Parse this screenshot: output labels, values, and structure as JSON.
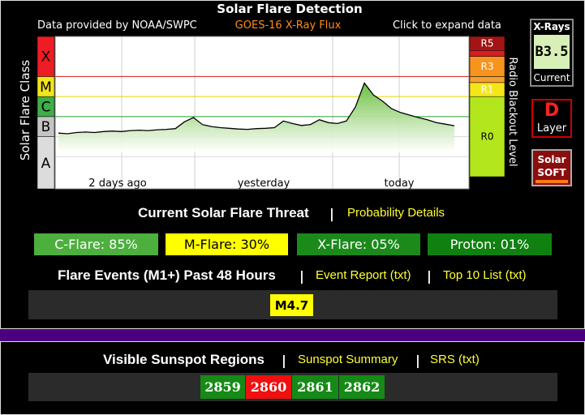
{
  "chart_data": {
    "type": "line",
    "title": "Solar Flare Detection",
    "subtitle": "GOES-16 X-Ray Flux",
    "source_note": "Data provided by NOAA/SWPC",
    "expand_note": "Click to expand data",
    "y_label": "Solar Flare Class",
    "y2_label": "Radio Blackout Level",
    "log_scale": true,
    "ylim": [
      1e-09,
      0.01
    ],
    "yticks": [
      {
        "value": 1e-08,
        "label": "A"
      },
      {
        "value": 1e-07,
        "label": "B"
      },
      {
        "value": 1e-06,
        "label": "C"
      },
      {
        "value": 1e-05,
        "label": "M"
      },
      {
        "value": 0.0001,
        "label": "X"
      }
    ],
    "class_colors": [
      "#dcdcdc",
      "#c4c4c4",
      "#3fae49",
      "#f2e41c",
      "#ee1c24"
    ],
    "grid_colors": [
      "#d8d8d8",
      "#d8d8d8",
      "#2a9a2a",
      "#e6d200",
      "#d01818"
    ],
    "radio_levels": [
      {
        "label": "R0",
        "from": 1e-09,
        "color": "#b4e61d"
      },
      {
        "label": "R1",
        "from": 1e-05,
        "color": "#f5e61a"
      },
      {
        "label": null,
        "from": 5e-05,
        "color": "#f5a030"
      },
      {
        "label": "R3",
        "from": 0.0001,
        "color": "#f7941d"
      },
      {
        "label": null,
        "from": 0.001,
        "color": "#d42020"
      },
      {
        "label": "R5",
        "from": 0.002,
        "color": "#a31515"
      }
    ],
    "x_labels": [
      "2 days ago",
      "yesterday",
      "today"
    ],
    "series": [
      {
        "name": "X-Ray Flux",
        "color": "#000000",
        "values": [
          1.5e-07,
          1.4e-07,
          1.6e-07,
          1.7e-07,
          1.6e-07,
          1.8e-07,
          1.9e-07,
          1.8e-07,
          2e-07,
          2.1e-07,
          2e-07,
          2.2e-07,
          2.3e-07,
          2.5e-07,
          5.5e-07,
          9e-07,
          4e-07,
          3.2e-07,
          2.8e-07,
          2.6e-07,
          2.4e-07,
          2.3e-07,
          2.5e-07,
          2.6e-07,
          2.8e-07,
          6e-07,
          4.5e-07,
          3.6e-07,
          4e-07,
          7e-07,
          5e-07,
          4.5e-07,
          6e-07,
          3e-06,
          4.7e-05,
          1.2e-05,
          6e-06,
          2.5e-06,
          1.6e-06,
          1.2e-06,
          9e-07,
          7e-07,
          5e-07,
          4.2e-07,
          3.5e-07
        ]
      }
    ]
  },
  "widgets": {
    "xray_title": "X-Rays",
    "xray_value": "B3.5",
    "xray_caption": "Current",
    "layer_value": "D",
    "layer_caption": "Layer",
    "soft_top": "Solar",
    "soft_bottom": "SOFT"
  },
  "separator": "|",
  "threat": {
    "title": "Current Solar Flare Threat",
    "link": "Probability Details",
    "boxes": [
      "C-Flare: 85%",
      "M-Flare: 30%",
      "X-Flare: 05%",
      "Proton: 01%"
    ]
  },
  "events": {
    "title": "Flare Events (M1+) Past 48 Hours",
    "links": [
      "Event Report (txt)",
      "Top 10 List (txt)"
    ],
    "items": [
      "M4.7"
    ]
  },
  "sunspots": {
    "title": "Visible Sunspot Regions",
    "links": [
      "Sunspot Summary",
      "SRS (txt)"
    ],
    "regions": [
      "2859",
      "2860",
      "2861",
      "2862"
    ]
  }
}
